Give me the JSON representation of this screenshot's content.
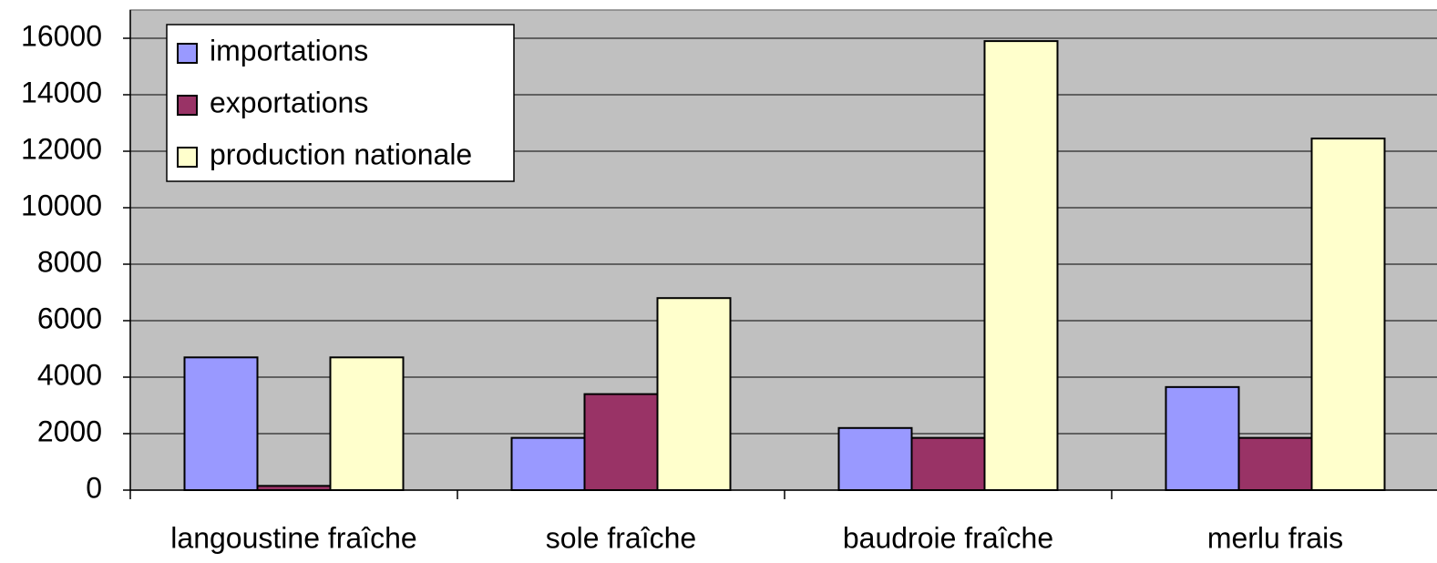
{
  "chart_data": {
    "type": "bar",
    "categories": [
      "langoustine fraîche",
      "sole fraîche",
      "baudroie fraîche",
      "merlu frais"
    ],
    "series": [
      {
        "name": "importations",
        "color": "#9999ff",
        "values": [
          4700,
          1850,
          2200,
          3650
        ]
      },
      {
        "name": "exportations",
        "color": "#993366",
        "values": [
          150,
          3400,
          1850,
          1850
        ]
      },
      {
        "name": "production nationale",
        "color": "#ffffcc",
        "values": [
          4700,
          6800,
          15900,
          12450
        ]
      }
    ],
    "ylim": [
      0,
      17000
    ],
    "yticks": [
      0,
      2000,
      4000,
      6000,
      8000,
      10000,
      12000,
      14000,
      16000
    ],
    "grid": true,
    "legend": "upper left"
  }
}
